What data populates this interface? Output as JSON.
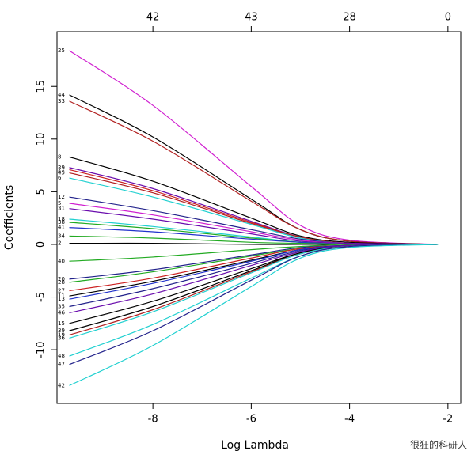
{
  "chart_data": {
    "type": "line",
    "xlabel": "Log Lambda",
    "ylabel": "Coefficients",
    "xlim": [
      -9.95,
      -1.74
    ],
    "ylim": [
      -15.1,
      20.2
    ],
    "xticks": [
      -8,
      -6,
      -4,
      -2
    ],
    "yticks": [
      -10,
      -5,
      0,
      5,
      10,
      15
    ],
    "top_ticks": [
      {
        "value": -8,
        "label": "42"
      },
      {
        "value": -6,
        "label": "43"
      },
      {
        "value": -4,
        "label": "28"
      },
      {
        "value": -2,
        "label": "0"
      }
    ],
    "x": [
      -9.7,
      -8,
      -6,
      -5,
      -4,
      -2.2
    ],
    "series": [
      {
        "name": "25",
        "color": "#d020d0",
        "values": [
          18.4,
          13.2,
          5.5,
          1.8,
          0.4,
          0
        ]
      },
      {
        "name": "44",
        "color": "#000000",
        "values": [
          14.2,
          10.2,
          4.3,
          1.4,
          0.3,
          0
        ]
      },
      {
        "name": "33",
        "color": "#b22222",
        "values": [
          13.6,
          9.8,
          4.1,
          1.4,
          0.3,
          0
        ]
      },
      {
        "name": "8",
        "color": "#000000",
        "values": [
          8.3,
          6.0,
          2.5,
          0.8,
          0.2,
          0
        ]
      },
      {
        "name": "29",
        "color": "#6a0dad",
        "values": [
          7.3,
          5.3,
          2.2,
          0.7,
          0.1,
          0
        ]
      },
      {
        "name": "21",
        "color": "#cc2222",
        "values": [
          7.1,
          5.1,
          2.1,
          0.7,
          0.1,
          0
        ]
      },
      {
        "name": "45",
        "color": "#b22222",
        "values": [
          6.8,
          4.9,
          2.0,
          0.7,
          0.1,
          0
        ]
      },
      {
        "name": "6",
        "color": "#20d0d0",
        "values": [
          6.3,
          4.5,
          1.9,
          0.6,
          0.1,
          0
        ]
      },
      {
        "name": "12",
        "color": "#22228b",
        "values": [
          4.5,
          3.2,
          1.4,
          0.5,
          0.1,
          0
        ]
      },
      {
        "name": "5",
        "color": "#d020d0",
        "values": [
          3.9,
          2.8,
          1.2,
          0.4,
          0.1,
          0
        ]
      },
      {
        "name": "31",
        "color": "#6a0dad",
        "values": [
          3.4,
          2.4,
          1.0,
          0.3,
          0.1,
          0
        ]
      },
      {
        "name": "18",
        "color": "#20d0d0",
        "values": [
          2.4,
          1.7,
          0.7,
          0.2,
          0,
          0
        ]
      },
      {
        "name": "38",
        "color": "#22aa22",
        "values": [
          2.1,
          1.5,
          0.6,
          0.2,
          0,
          0
        ]
      },
      {
        "name": "41",
        "color": "#2233cc",
        "values": [
          1.6,
          1.2,
          0.5,
          0.2,
          0,
          0
        ]
      },
      {
        "name": "34",
        "color": "#22aa22",
        "values": [
          0.8,
          0.6,
          0.2,
          0.1,
          0,
          0
        ]
      },
      {
        "name": "2",
        "color": "#000000",
        "values": [
          0.1,
          0.1,
          0,
          0,
          0,
          0
        ]
      },
      {
        "name": "40",
        "color": "#22aa22",
        "values": [
          -1.6,
          -1.2,
          -0.5,
          -0.2,
          0,
          0
        ]
      },
      {
        "name": "20",
        "color": "#22228b",
        "values": [
          -3.3,
          -2.4,
          -1.0,
          -0.3,
          -0.1,
          0
        ]
      },
      {
        "name": "28",
        "color": "#22aa22",
        "values": [
          -3.6,
          -2.6,
          -1.1,
          -0.4,
          -0.1,
          0
        ]
      },
      {
        "name": "27",
        "color": "#cc2222",
        "values": [
          -4.4,
          -3.2,
          -1.3,
          -0.4,
          -0.1,
          0
        ]
      },
      {
        "name": "11",
        "color": "#000000",
        "values": [
          -4.9,
          -3.5,
          -1.5,
          -0.5,
          -0.1,
          0
        ]
      },
      {
        "name": "13",
        "color": "#2233cc",
        "values": [
          -5.2,
          -3.7,
          -1.6,
          -0.5,
          -0.1,
          0
        ]
      },
      {
        "name": "35",
        "color": "#22228b",
        "values": [
          -5.9,
          -4.2,
          -1.8,
          -0.6,
          -0.1,
          0
        ]
      },
      {
        "name": "46",
        "color": "#6a0dad",
        "values": [
          -6.5,
          -4.7,
          -2.0,
          -0.7,
          -0.1,
          0
        ]
      },
      {
        "name": "15",
        "color": "#000000",
        "values": [
          -7.5,
          -5.4,
          -2.3,
          -0.8,
          -0.2,
          0
        ]
      },
      {
        "name": "39",
        "color": "#000000",
        "values": [
          -8.2,
          -5.9,
          -2.5,
          -0.8,
          -0.2,
          0
        ]
      },
      {
        "name": "19",
        "color": "#b22222",
        "values": [
          -8.6,
          -6.2,
          -2.6,
          -0.9,
          -0.2,
          0
        ]
      },
      {
        "name": "36",
        "color": "#20d0d0",
        "values": [
          -8.9,
          -6.4,
          -2.7,
          -0.9,
          -0.2,
          0
        ]
      },
      {
        "name": "48",
        "color": "#20d0d0",
        "values": [
          -10.6,
          -7.6,
          -3.2,
          -1.1,
          -0.2,
          0
        ]
      },
      {
        "name": "47",
        "color": "#22228b",
        "values": [
          -11.4,
          -8.2,
          -3.4,
          -1.1,
          -0.2,
          0
        ]
      },
      {
        "name": "42",
        "color": "#20d0d0",
        "values": [
          -13.4,
          -9.6,
          -4.0,
          -1.3,
          -0.3,
          0
        ]
      }
    ],
    "watermark": "很狂的科研人"
  }
}
